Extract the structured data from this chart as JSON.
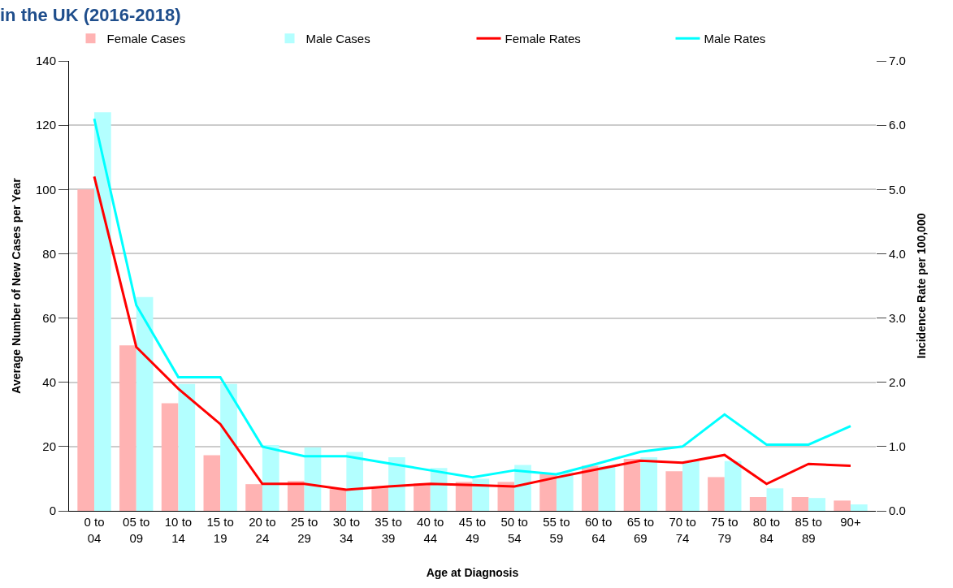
{
  "chart_data": {
    "type": "bar",
    "title": "in the UK (2016-2018)",
    "xlabel": "Age at Diagnosis",
    "ylabel": "Average Number of New Cases per Year",
    "y2label": "Incidence Rate per 100,000",
    "categories": [
      "0 to 04",
      "05 to 09",
      "10 to 14",
      "15 to 19",
      "20 to 24",
      "25 to 29",
      "30 to 34",
      "35 to 39",
      "40 to 44",
      "45 to 49",
      "50 to 54",
      "55 to 59",
      "60 to 64",
      "65 to 69",
      "70 to 74",
      "75 to 79",
      "80 to 84",
      "85 to 89",
      "90+"
    ],
    "series": [
      {
        "name": "Female Cases",
        "color": "#ffb3b3",
        "values": [
          100,
          51.5,
          33.5,
          17.3,
          8.3,
          9.3,
          6.8,
          7.5,
          8.3,
          9.0,
          9.0,
          11.5,
          14,
          16.2,
          12.3,
          10.5,
          4.3,
          4.3,
          3.2
        ]
      },
      {
        "name": "Male Cases",
        "color": "#b3ffff",
        "values": [
          124,
          66.5,
          39.5,
          39.5,
          20.5,
          19.8,
          18.3,
          16.7,
          13.3,
          10.0,
          14.3,
          12.0,
          14.0,
          16.7,
          15.5,
          15.5,
          7.0,
          4.0,
          2.0
        ]
      },
      {
        "name": "Female Rates",
        "type": "line",
        "axis": "y2",
        "color": "#ff0000",
        "values": [
          5.2,
          2.55,
          1.9,
          1.35,
          0.42,
          0.42,
          0.33,
          0.38,
          0.42,
          0.4,
          0.38,
          0.52,
          0.65,
          0.78,
          0.75,
          0.87,
          0.42,
          0.73,
          0.7
        ]
      },
      {
        "name": "Male Rates",
        "type": "line",
        "axis": "y2",
        "color": "#00ffff",
        "values": [
          6.1,
          3.2,
          2.08,
          2.08,
          1.0,
          0.85,
          0.85,
          0.74,
          0.63,
          0.52,
          0.63,
          0.57,
          0.74,
          0.92,
          1.0,
          1.5,
          1.03,
          1.03,
          1.32
        ]
      }
    ],
    "ylim": [
      0,
      140
    ],
    "yticks": [
      0,
      20,
      40,
      60,
      80,
      100,
      120,
      140
    ],
    "y2lim": [
      0,
      7
    ],
    "y2ticks": [
      {
        "value": 0,
        "label": "0.0"
      },
      {
        "value": 1,
        "label": "1.0"
      },
      {
        "value": 2,
        "label": "2.0"
      },
      {
        "value": 3,
        "label": "3.0"
      },
      {
        "value": 4,
        "label": "4.0"
      },
      {
        "value": 5,
        "label": "5.0"
      },
      {
        "value": 6,
        "label": "6.0"
      },
      {
        "value": 7,
        "label": "7.0"
      }
    ],
    "grid": "y",
    "legend": "top",
    "marker": "none",
    "line_style": "solid"
  }
}
